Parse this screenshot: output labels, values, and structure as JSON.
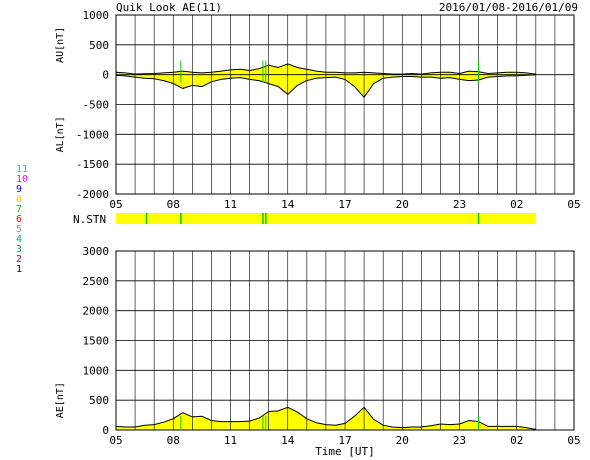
{
  "header": {
    "title": "Quik Look AE(11)",
    "date_range": "2016/01/08-2016/01/09"
  },
  "station_legend": {
    "labels": [
      "11",
      "10",
      "9",
      "8",
      "7",
      "6",
      "5",
      "4",
      "3",
      "2",
      "1"
    ],
    "colors": [
      "#00c8ff",
      "#ff00ff",
      "#0000ff",
      "#ffcc00",
      "#00c800",
      "#ff0000",
      "#999999",
      "#00aaaa",
      "#00aa66",
      "#990099",
      "#0000aa"
    ]
  },
  "colors": {
    "fill": "#ffff00",
    "trace": "#000000",
    "marker": "#00cc00",
    "grid": "#000000"
  },
  "chart_data": [
    {
      "type": "area",
      "ylabel_top": "AU[nT]",
      "ylabel_bottom": "AL[nT]",
      "ylim": [
        -2000,
        1000
      ],
      "yticks": [
        1000,
        500,
        0,
        -500,
        -1000,
        -1500,
        -2000
      ],
      "xlim": [
        5,
        29
      ],
      "xticks": [
        "05",
        "08",
        "11",
        "14",
        "17",
        "20",
        "23",
        "02",
        "05"
      ],
      "grid": true,
      "series": [
        {
          "x": [
            5.0,
            5.5,
            6.0,
            6.5,
            7.0,
            7.5,
            8.0,
            8.5,
            9.0,
            9.5,
            10.0,
            10.5,
            11.0,
            11.5,
            12.0,
            12.5,
            13.0,
            13.5,
            14.0,
            14.5,
            15.0,
            15.5,
            16.0,
            16.5,
            17.0,
            17.5,
            18.0,
            18.5,
            19.0,
            19.5,
            20.0,
            20.5,
            21.0,
            21.5,
            22.0,
            22.5,
            23.0,
            23.5,
            24.0,
            24.5,
            25.0,
            25.5,
            26.0,
            26.5,
            27.0
          ],
          "values": [
            40,
            30,
            10,
            15,
            20,
            30,
            40,
            60,
            40,
            30,
            40,
            60,
            80,
            90,
            70,
            100,
            160,
            120,
            180,
            120,
            90,
            60,
            40,
            40,
            30,
            30,
            40,
            30,
            20,
            10,
            10,
            20,
            10,
            30,
            40,
            40,
            20,
            60,
            50,
            20,
            30,
            40,
            40,
            30,
            10
          ]
        },
        {
          "x": [
            5.0,
            5.5,
            6.0,
            6.5,
            7.0,
            7.5,
            8.0,
            8.5,
            9.0,
            9.5,
            10.0,
            10.5,
            11.0,
            11.5,
            12.0,
            12.5,
            13.0,
            13.5,
            14.0,
            14.5,
            15.0,
            15.5,
            16.0,
            16.5,
            17.0,
            17.5,
            18.0,
            18.5,
            19.0,
            19.5,
            20.0,
            20.5,
            21.0,
            21.5,
            22.0,
            22.5,
            23.0,
            23.5,
            24.0,
            24.5,
            25.0,
            25.5,
            26.0,
            26.5,
            27.0
          ],
          "values": [
            -10,
            -20,
            -40,
            -60,
            -70,
            -100,
            -150,
            -230,
            -180,
            -200,
            -120,
            -80,
            -60,
            -50,
            -80,
            -100,
            -150,
            -200,
            -330,
            -180,
            -100,
            -60,
            -50,
            -40,
            -80,
            -200,
            -380,
            -150,
            -60,
            -40,
            -30,
            -30,
            -40,
            -40,
            -60,
            -50,
            -80,
            -100,
            -90,
            -40,
            -30,
            -20,
            -20,
            -10,
            0
          ]
        }
      ]
    },
    {
      "type": "bar",
      "label": "N.STN",
      "xlim": [
        5,
        29
      ],
      "data_end": 27.0,
      "markers": [
        6.6,
        8.4,
        12.7,
        12.85,
        24.0
      ]
    },
    {
      "type": "area",
      "ylabel": "AE[nT]",
      "ylim": [
        0,
        3000
      ],
      "yticks": [
        3000,
        2500,
        2000,
        1500,
        1000,
        500,
        0
      ],
      "xlim": [
        5,
        29
      ],
      "xticks": [
        "05",
        "08",
        "11",
        "14",
        "17",
        "20",
        "23",
        "02",
        "05"
      ],
      "xlabel": "Time [UT]",
      "grid": true,
      "series": [
        {
          "x": [
            5.0,
            5.5,
            6.0,
            6.5,
            7.0,
            7.5,
            8.0,
            8.5,
            9.0,
            9.5,
            10.0,
            10.5,
            11.0,
            11.5,
            12.0,
            12.5,
            13.0,
            13.5,
            14.0,
            14.5,
            15.0,
            15.5,
            16.0,
            16.5,
            17.0,
            17.5,
            18.0,
            18.5,
            19.0,
            19.5,
            20.0,
            20.5,
            21.0,
            21.5,
            22.0,
            22.5,
            23.0,
            23.5,
            24.0,
            24.5,
            25.0,
            25.5,
            26.0,
            26.5,
            27.0
          ],
          "values": [
            60,
            50,
            50,
            80,
            90,
            130,
            190,
            290,
            220,
            230,
            160,
            140,
            140,
            140,
            150,
            200,
            310,
            320,
            380,
            300,
            190,
            120,
            90,
            80,
            110,
            230,
            380,
            180,
            80,
            50,
            40,
            50,
            50,
            70,
            100,
            90,
            100,
            160,
            140,
            60,
            60,
            60,
            60,
            40,
            10
          ]
        }
      ]
    }
  ]
}
